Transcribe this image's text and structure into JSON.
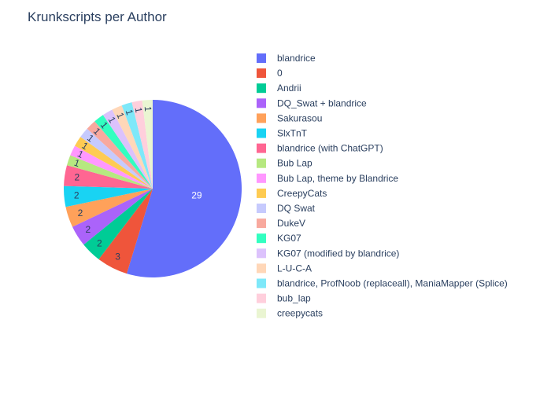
{
  "chart_data": {
    "type": "pie",
    "title": "Krunkscripts per Author",
    "legend_position": "right",
    "slices": [
      {
        "label": "blandrice",
        "value": 29,
        "color": "#636efa"
      },
      {
        "label": "0",
        "value": 3,
        "color": "#ef553b"
      },
      {
        "label": "Andrii",
        "value": 2,
        "color": "#00cc96"
      },
      {
        "label": "DQ_Swat + blandrice",
        "value": 2,
        "color": "#ab63fa"
      },
      {
        "label": "Sakurasou",
        "value": 2,
        "color": "#ffa15a"
      },
      {
        "label": "SlxTnT",
        "value": 2,
        "color": "#19d3f3"
      },
      {
        "label": "blandrice (with ChatGPT)",
        "value": 2,
        "color": "#ff6692"
      },
      {
        "label": "Bub Lap",
        "value": 1,
        "color": "#b6e880"
      },
      {
        "label": "Bub Lap, theme by Blandrice",
        "value": 1,
        "color": "#ff97ff"
      },
      {
        "label": "CreepyCats",
        "value": 1,
        "color": "#fecb52"
      },
      {
        "label": "DQ Swat",
        "value": 1,
        "color": "#c6cafd"
      },
      {
        "label": "DukeV",
        "value": 1,
        "color": "#f8a99e"
      },
      {
        "label": "KG07",
        "value": 1,
        "color": "#32ffc0"
      },
      {
        "label": "KG07 (modified by blandrice)",
        "value": 1,
        "color": "#dcc2fc"
      },
      {
        "label": "L-U-C-A",
        "value": 1,
        "color": "#ffd7b8"
      },
      {
        "label": "blandrice, ProfNoob (replaceall), ManiaMapper (Splice)",
        "value": 1,
        "color": "#7ee8f9"
      },
      {
        "label": "bub_lap",
        "value": 1,
        "color": "#ffcfdc"
      },
      {
        "label": "creepycats",
        "value": 1,
        "color": "#eaf5d2"
      }
    ]
  }
}
